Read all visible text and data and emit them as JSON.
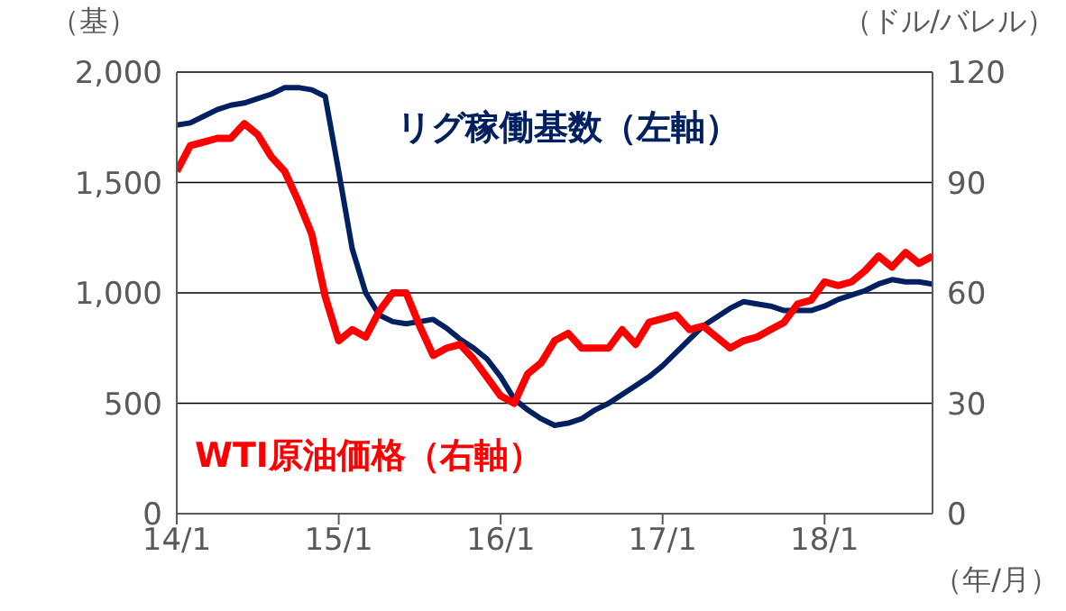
{
  "chart_data": {
    "type": "line",
    "xlabel": "（年/月）",
    "ylabel": "（基）",
    "y2label": "（ドル/バレル）",
    "categories": [
      "14/1",
      null,
      null,
      null,
      null,
      null,
      null,
      null,
      null,
      null,
      null,
      null,
      "15/1",
      null,
      null,
      null,
      null,
      null,
      null,
      null,
      null,
      null,
      null,
      null,
      "16/1",
      null,
      null,
      null,
      null,
      null,
      null,
      null,
      null,
      null,
      null,
      null,
      "17/1",
      null,
      null,
      null,
      null,
      null,
      null,
      null,
      null,
      null,
      null,
      null,
      "18/1",
      null,
      null,
      null,
      null,
      null,
      null,
      null,
      null
    ],
    "series": [
      {
        "name": "リグ稼働基数（左軸）",
        "color": "#002060",
        "axis": "y",
        "values": [
          1760,
          1770,
          1800,
          1830,
          1850,
          1860,
          1880,
          1900,
          1930,
          1930,
          1920,
          1890,
          1550,
          1200,
          1000,
          900,
          870,
          860,
          870,
          880,
          840,
          790,
          750,
          700,
          620,
          520,
          470,
          430,
          400,
          410,
          430,
          470,
          500,
          540,
          580,
          620,
          670,
          730,
          790,
          850,
          890,
          930,
          960,
          950,
          940,
          920,
          920,
          920,
          940,
          970,
          990,
          1010,
          1040,
          1060,
          1050,
          1050,
          1040
        ]
      },
      {
        "name": "WTI原油価格（右軸）",
        "color": "#ff0000",
        "axis": "y2",
        "values": [
          93,
          100,
          101,
          102,
          102,
          106,
          103,
          97,
          93,
          85,
          76,
          59,
          47,
          50,
          48,
          55,
          60,
          60,
          51,
          43,
          45,
          46,
          42,
          37,
          32,
          30,
          38,
          41,
          47,
          49,
          45,
          45,
          45,
          50,
          46,
          52,
          53,
          54,
          50,
          51,
          48,
          45,
          47,
          48,
          50,
          52,
          57,
          58,
          63,
          62,
          63,
          66,
          70,
          67,
          71,
          68,
          70
        ]
      }
    ],
    "ylim": [
      0,
      2000
    ],
    "yticks": [
      0,
      {
        "value": 500,
        "label": "500"
      },
      {
        "value": 1000,
        "label": "1,000"
      },
      {
        "value": 1500,
        "label": "1,500"
      },
      {
        "value": 2000,
        "label": "2,000"
      }
    ],
    "y2lim": [
      0,
      120
    ],
    "y2ticks": [
      0,
      30,
      60,
      90,
      120
    ],
    "grid": "y",
    "marker": "none",
    "line_style": "solid"
  }
}
